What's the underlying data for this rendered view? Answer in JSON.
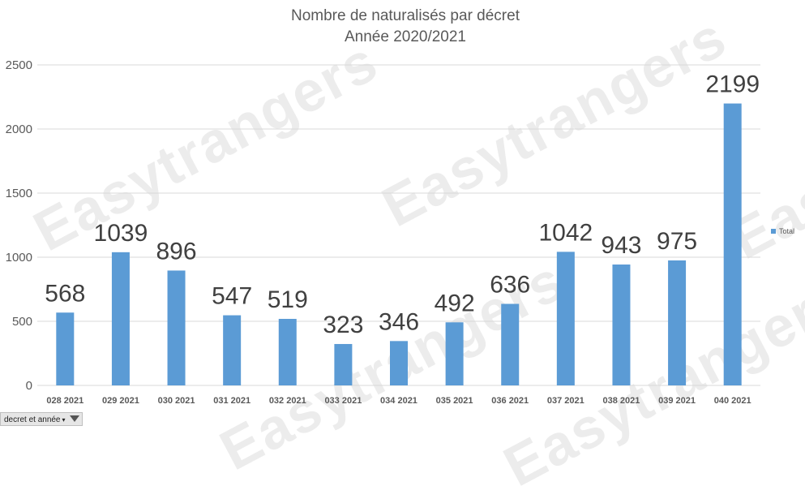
{
  "colors": {
    "bar": "#5b9bd5",
    "grid": "#d9d9d9",
    "axis_text": "#595959",
    "label": "#404040"
  },
  "watermark_text": "Easytrangers",
  "filter": {
    "label": "decret et année",
    "chev": "▾",
    "icon": "funnel-icon"
  },
  "chart_data": {
    "type": "bar",
    "title": "Nombre de naturalisés par décret",
    "subtitle": "Année 2020/2021",
    "categories": [
      "028 2021",
      "029 2021",
      "030 2021",
      "031 2021",
      "032 2021",
      "033 2021",
      "034 2021",
      "035 2021",
      "036 2021",
      "037 2021",
      "038 2021",
      "039 2021",
      "040 2021"
    ],
    "series": [
      {
        "name": "Total",
        "values": [
          568,
          1039,
          896,
          547,
          519,
          323,
          346,
          492,
          636,
          1042,
          943,
          975,
          2199
        ]
      }
    ],
    "ylim": [
      0,
      2500
    ],
    "yticks": [
      0,
      500,
      1000,
      1500,
      2000,
      2500
    ],
    "grid": true,
    "legend": "right",
    "data_labels": true
  }
}
